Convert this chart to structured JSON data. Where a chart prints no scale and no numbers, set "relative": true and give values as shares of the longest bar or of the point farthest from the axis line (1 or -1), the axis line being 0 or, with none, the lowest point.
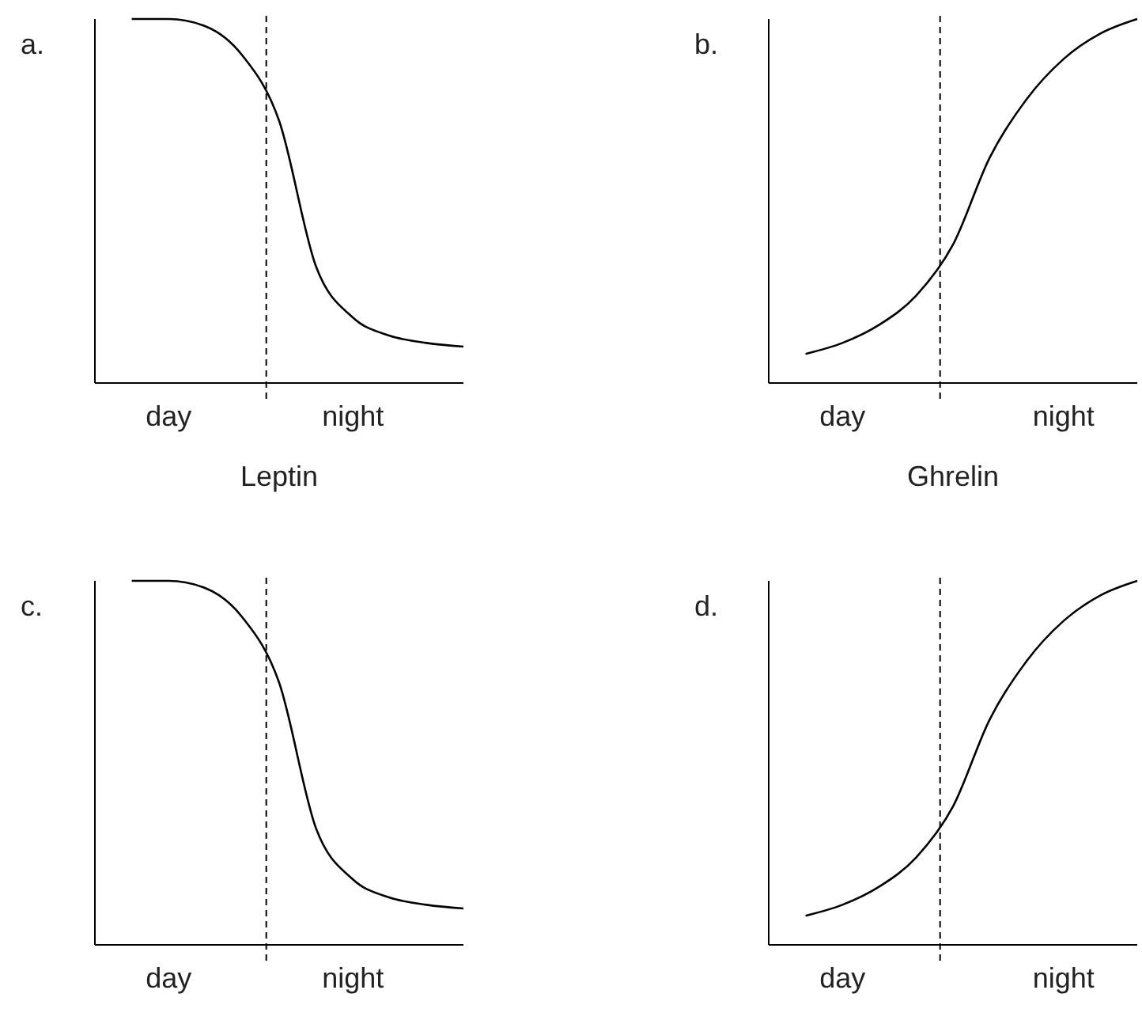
{
  "chart_data": [
    {
      "type": "line",
      "title": "a.",
      "xlabel": "Leptin",
      "relative": true,
      "tick_labels": "x",
      "categories": [
        null,
        null,
        "day",
        null,
        null,
        null,
        null,
        "night",
        null,
        null,
        null
      ],
      "series": [
        {
          "color": "#000000",
          "values": [
            null,
            1,
            1,
            0.98,
            0.9,
            0.72,
            0.32,
            0.18,
            0.13,
            0.11,
            0.1
          ]
        }
      ]
    },
    {
      "type": "line",
      "title": "b.",
      "xlabel": "Ghrelin",
      "relative": true,
      "tick_labels": "x",
      "categories": [
        null,
        null,
        "day",
        null,
        null,
        null,
        null,
        null,
        "night",
        null,
        null
      ],
      "series": [
        {
          "color": "#000000",
          "values": [
            null,
            0.08,
            0.11,
            0.16,
            0.24,
            0.38,
            0.62,
            0.78,
            0.89,
            0.96,
            1
          ]
        }
      ]
    },
    {
      "type": "line",
      "title": "c.",
      "relative": true,
      "tick_labels": "x",
      "categories": [
        null,
        null,
        "day",
        null,
        null,
        null,
        null,
        "night",
        null,
        null,
        null
      ],
      "series": [
        {
          "color": "#000000",
          "values": [
            null,
            1,
            1,
            0.98,
            0.9,
            0.72,
            0.32,
            0.18,
            0.13,
            0.11,
            0.1
          ]
        }
      ]
    },
    {
      "type": "line",
      "title": "d.",
      "relative": true,
      "tick_labels": "x",
      "categories": [
        null,
        null,
        "day",
        null,
        null,
        null,
        null,
        null,
        "night",
        null,
        null
      ],
      "series": [
        {
          "color": "#000000",
          "values": [
            null,
            0.08,
            0.11,
            0.16,
            0.24,
            0.38,
            0.62,
            0.78,
            0.89,
            0.96,
            1
          ]
        }
      ]
    }
  ]
}
